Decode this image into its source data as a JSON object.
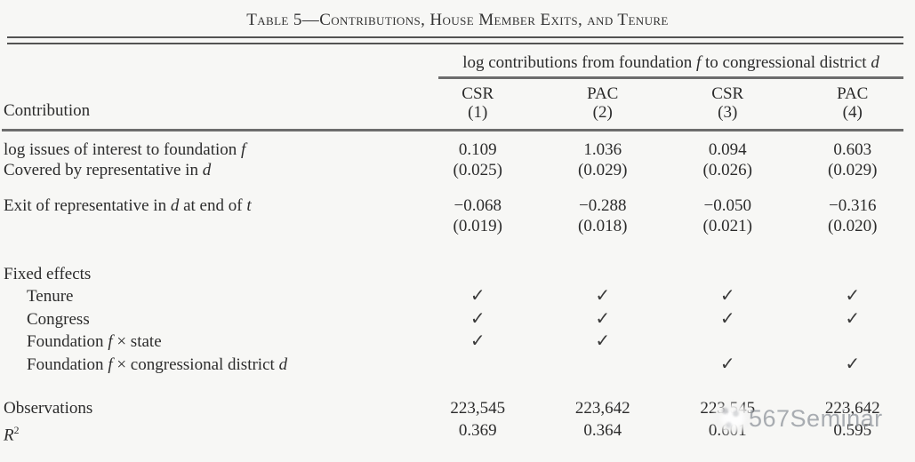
{
  "table": {
    "title": "Table 5—Contributions, House Member Exits, and Tenure",
    "spanner": [
      {
        "text": "log contributions from foundation "
      },
      {
        "text": "f",
        "italic": true
      },
      {
        "text": " to congressional district "
      },
      {
        "text": "d",
        "italic": true
      }
    ],
    "stub_header": "Contribution",
    "columns": [
      {
        "name": "CSR",
        "number": "(1)"
      },
      {
        "name": "PAC",
        "number": "(2)"
      },
      {
        "name": "CSR",
        "number": "(3)"
      },
      {
        "name": "PAC",
        "number": "(4)"
      }
    ],
    "coef_rows": [
      {
        "label_line1": [
          {
            "text": "log issues of interest to foundation "
          },
          {
            "text": "f",
            "italic": true
          }
        ],
        "label_line2": [
          {
            "text": "Covered by representative in "
          },
          {
            "text": "d",
            "italic": true
          }
        ],
        "estimates": [
          "0.109",
          "1.036",
          "0.094",
          "0.603"
        ],
        "std_errors": [
          "(0.025)",
          "(0.029)",
          "(0.026)",
          "(0.029)"
        ]
      },
      {
        "label_line1": [
          {
            "text": "Exit of representative in "
          },
          {
            "text": "d",
            "italic": true
          },
          {
            "text": " at end of "
          },
          {
            "text": "t",
            "italic": true
          }
        ],
        "label_line2": [],
        "estimates": [
          "−0.068",
          "−0.288",
          "−0.050",
          "−0.316"
        ],
        "std_errors": [
          "(0.019)",
          "(0.018)",
          "(0.021)",
          "(0.020)"
        ]
      }
    ],
    "fixed_effects": {
      "header": "Fixed effects",
      "rows": [
        {
          "label": [
            {
              "text": "Tenure"
            }
          ],
          "checks": [
            "✓",
            "✓",
            "✓",
            "✓"
          ]
        },
        {
          "label": [
            {
              "text": "Congress"
            }
          ],
          "checks": [
            "✓",
            "✓",
            "✓",
            "✓"
          ]
        },
        {
          "label": [
            {
              "text": "Foundation "
            },
            {
              "text": "f",
              "italic": true
            },
            {
              "text": " × state"
            }
          ],
          "checks": [
            "✓",
            "✓",
            "",
            ""
          ]
        },
        {
          "label": [
            {
              "text": "Foundation "
            },
            {
              "text": "f",
              "italic": true
            },
            {
              "text": " × congressional district "
            },
            {
              "text": "d",
              "italic": true
            }
          ],
          "checks": [
            "",
            "",
            "✓",
            "✓"
          ]
        }
      ]
    },
    "stats_rows": [
      {
        "label": [
          {
            "text": "Observations"
          }
        ],
        "values": [
          "223,545",
          "223,642",
          "223,545",
          "223,642"
        ]
      },
      {
        "label": [
          {
            "text": "R",
            "italic": true
          },
          {
            "text": "2",
            "sup": true
          }
        ],
        "values": [
          "0.369",
          "0.364",
          "0.601",
          "0.595"
        ]
      }
    ]
  },
  "watermark": {
    "text": "567Seminar"
  }
}
